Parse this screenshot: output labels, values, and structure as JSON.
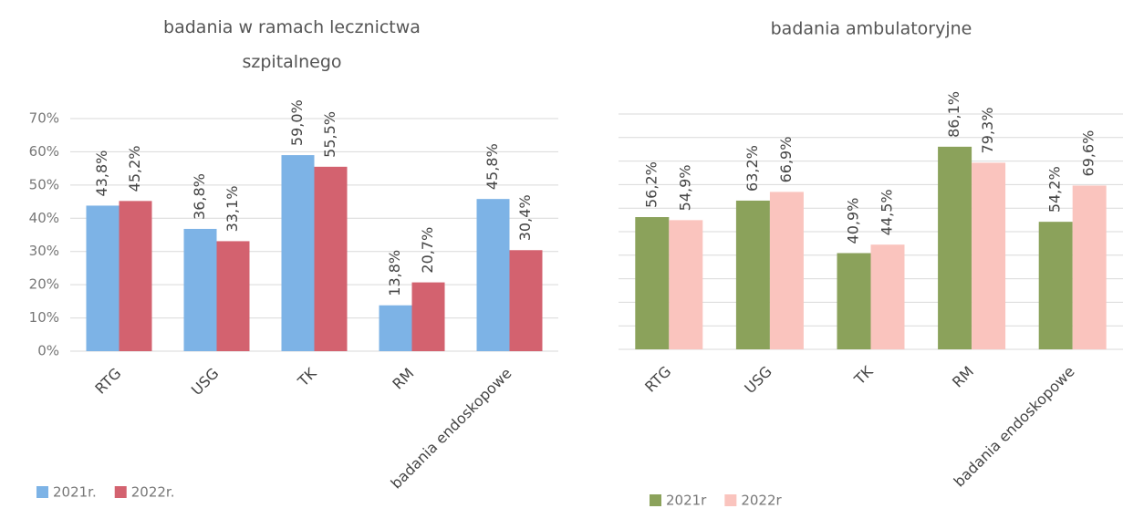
{
  "chart_data": [
    {
      "type": "bar",
      "title": "badania w ramach lecznictwa szpitalnego",
      "categories": [
        "RTG",
        "USG",
        "TK",
        "RM",
        "badania endoskopowe"
      ],
      "series": [
        {
          "name": "2021r.",
          "color": "#7db3e6",
          "values": [
            43.8,
            36.8,
            59.0,
            13.8,
            45.8
          ],
          "value_labels": [
            "43,8%",
            "36,8%",
            "59,0%",
            "13,8%",
            "45,8%"
          ]
        },
        {
          "name": "2022r.",
          "color": "#d3626f",
          "values": [
            45.2,
            33.1,
            55.5,
            20.7,
            30.4
          ],
          "value_labels": [
            "45,2%",
            "33,1%",
            "55,5%",
            "20,7%",
            "30,4%"
          ]
        }
      ],
      "ylim": [
        0,
        70
      ],
      "yticks": [
        {
          "value": 0,
          "label": "0%"
        },
        {
          "value": 10,
          "label": "10%"
        },
        {
          "value": 20,
          "label": "20%"
        },
        {
          "value": 30,
          "label": "30%"
        },
        {
          "value": 40,
          "label": "40%"
        },
        {
          "value": 50,
          "label": "50%"
        },
        {
          "value": 60,
          "label": "60%"
        },
        {
          "value": 70,
          "label": "70%"
        }
      ],
      "grid": true,
      "legend": "bottom-left"
    },
    {
      "type": "bar",
      "title": "badania ambulatoryjne",
      "categories": [
        "RTG",
        "USG",
        "TK",
        "RM",
        "badania endoskopowe"
      ],
      "series": [
        {
          "name": "2021r",
          "color": "#8ba25b",
          "values": [
            56.2,
            63.2,
            40.9,
            86.1,
            54.2
          ],
          "value_labels": [
            "56,2%",
            "63,2%",
            "40,9%",
            "86,1%",
            "54,2%"
          ]
        },
        {
          "name": "2022r",
          "color": "#fac4be",
          "values": [
            54.9,
            66.9,
            44.5,
            79.3,
            69.6
          ],
          "value_labels": [
            "54,9%",
            "66,9%",
            "44,5%",
            "79,3%",
            "69,6%"
          ]
        }
      ],
      "ylim": [
        0,
        100
      ],
      "yticks": [
        0,
        10,
        20,
        30,
        40,
        50,
        60,
        70,
        80,
        90,
        100
      ],
      "ytick_labels": false,
      "grid": true,
      "legend": "bottom-left"
    }
  ]
}
